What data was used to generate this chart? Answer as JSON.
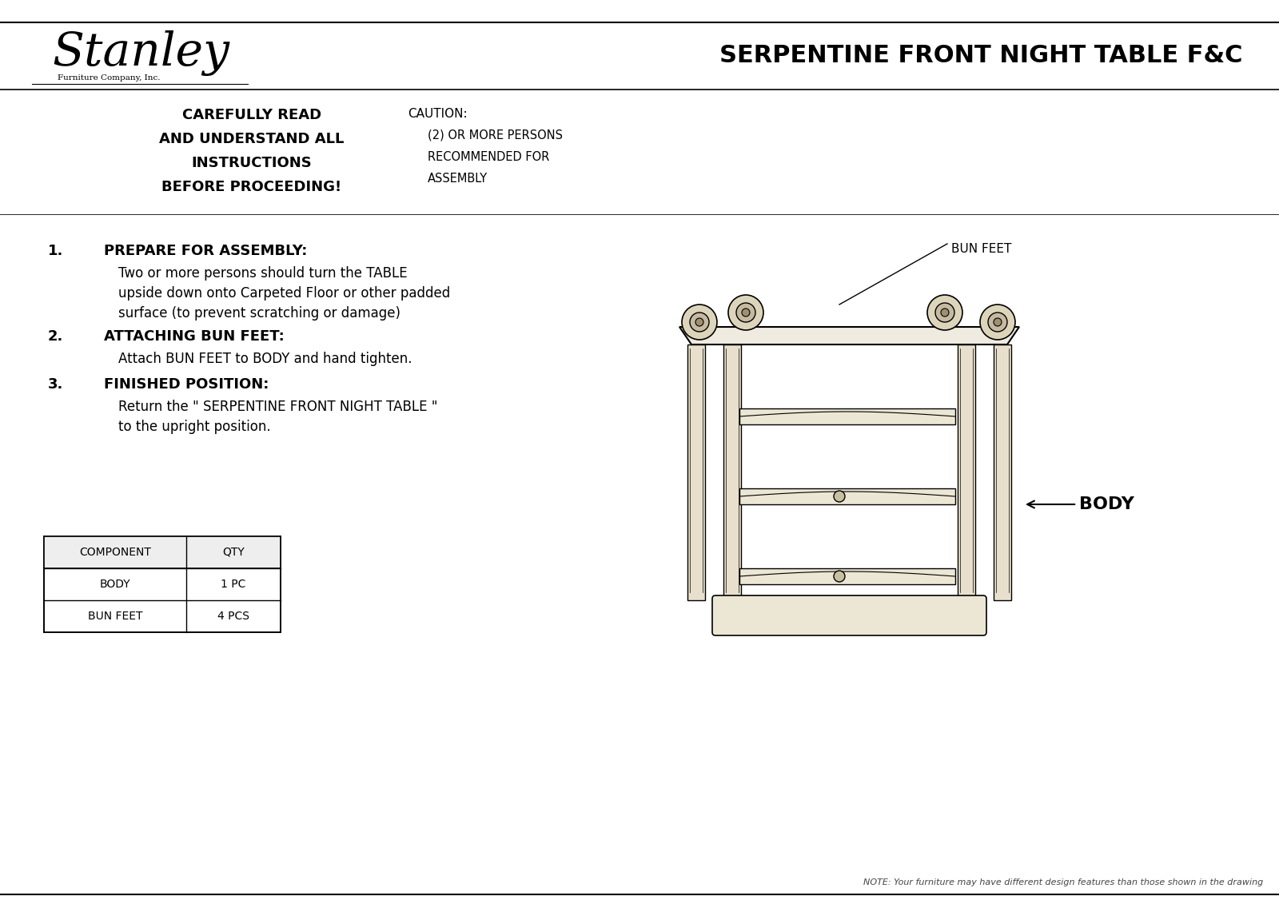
{
  "title": "SERPENTINE FRONT NIGHT TABLE F&C",
  "stanley_text": "Stanley",
  "stanley_sub": "Furniture Company, Inc.",
  "header_left_lines": [
    "CAREFULLY READ",
    "AND UNDERSTAND ALL",
    "INSTRUCTIONS",
    "BEFORE PROCEEDING!"
  ],
  "header_right_lines": [
    "CAUTION:",
    "(2) OR MORE PERSONS",
    "RECOMMENDED FOR",
    "ASSEMBLY"
  ],
  "step1_num": "1.",
  "step1_title": "PREPARE FOR ASSEMBLY:",
  "step1_body_lines": [
    "Two or more persons should turn the TABLE",
    "upside down onto Carpeted Floor or other padded",
    "surface (to prevent scratching or damage)"
  ],
  "step2_num": "2.",
  "step2_title": "ATTACHING BUN FEET:",
  "step2_body": "Attach BUN FEET to BODY and hand tighten.",
  "step3_num": "3.",
  "step3_title": "FINISHED POSITION:",
  "step3_body_lines": [
    "Return the \" SERPENTINE FRONT NIGHT TABLE \"",
    "to the upright position."
  ],
  "label_bun_feet": "BUN FEET",
  "label_body": "BODY",
  "table_headers": [
    "COMPONENT",
    "QTY"
  ],
  "table_rows": [
    [
      "BODY",
      "1 PC"
    ],
    [
      "BUN FEET",
      "4 PCS"
    ]
  ],
  "note_text": "NOTE: Your furniture may have different design features than those shown in the drawing",
  "bg_color": "#ffffff",
  "text_color": "#000000"
}
